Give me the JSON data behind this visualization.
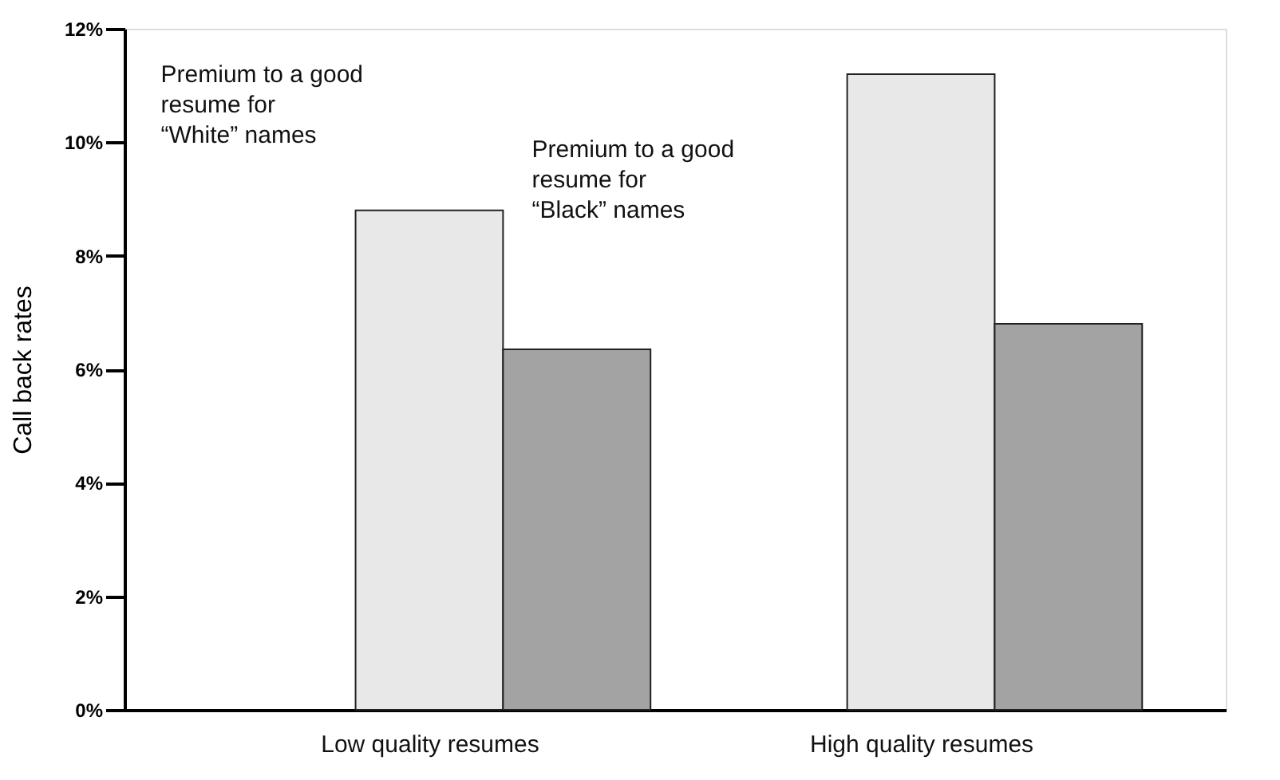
{
  "chart_data": {
    "type": "bar",
    "ylabel": "Call back rates",
    "categories": [
      "Low quality resumes",
      "High quality resumes"
    ],
    "series": [
      {
        "color": "#e8e8e8",
        "values": [
          8.8,
          11.2
        ]
      },
      {
        "color": "#a3a3a3",
        "values": [
          6.35,
          6.8
        ]
      }
    ],
    "ylim": [
      0,
      12
    ],
    "yticks": [
      {
        "value": 0,
        "label": "0%"
      },
      {
        "value": 2,
        "label": "2%"
      },
      {
        "value": 4,
        "label": "4%"
      },
      {
        "value": 6,
        "label": "6%"
      },
      {
        "value": 8,
        "label": "8%"
      },
      {
        "value": 10,
        "label": "10%"
      },
      {
        "value": 12,
        "label": "12%"
      }
    ],
    "grid": false,
    "legend": false,
    "annotations": [
      "Premium to a good resume for “White” names",
      "Premium to a good resume for “Black” names"
    ]
  }
}
